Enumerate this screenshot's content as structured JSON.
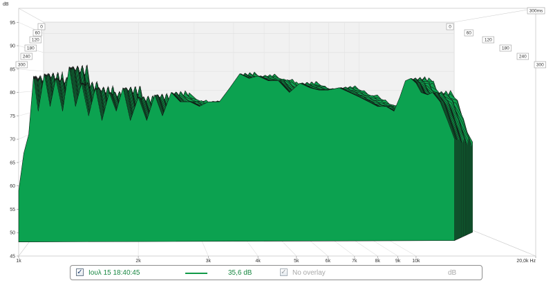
{
  "chart_data": {
    "type": "area",
    "subtype": "waterfall-3d",
    "ylabel": "dB",
    "ylim": [
      45,
      98
    ],
    "y_ticks": [
      "95",
      "90",
      "85",
      "80",
      "75",
      "70",
      "65",
      "60",
      "55",
      "50",
      "45"
    ],
    "xlim": [
      1000,
      20000
    ],
    "x_scale": "log",
    "x_ticks": [
      {
        "value": 1000,
        "label": "1k"
      },
      {
        "value": 2000,
        "label": "2k"
      },
      {
        "value": 3000,
        "label": "3k"
      },
      {
        "value": 4000,
        "label": "4k"
      },
      {
        "value": 5000,
        "label": "5k"
      },
      {
        "value": 6000,
        "label": "6k"
      },
      {
        "value": 7000,
        "label": "7k"
      },
      {
        "value": 8000,
        "label": "8k"
      },
      {
        "value": 9000,
        "label": "9k"
      },
      {
        "value": 10000,
        "label": "10k"
      },
      {
        "value": 20000,
        "label": "20,0k Hz"
      }
    ],
    "time_ticks_left": [
      "0",
      "60",
      "120",
      "180",
      "240",
      "300"
    ],
    "time_ticks_right": [
      "0",
      "60",
      "120",
      "180",
      "240",
      "300"
    ],
    "time_corner_label": "300ms",
    "time_range_ms": [
      0,
      300
    ],
    "slice_count": 28,
    "fill_color": "#0ca250",
    "edge_color": "#111111",
    "grid": true,
    "front_slice": {
      "x": [
        1000,
        1030,
        1060,
        1090,
        1120,
        1160,
        1200,
        1240,
        1290,
        1340,
        1390,
        1440,
        1500,
        1560,
        1620,
        1690,
        1760,
        1830,
        1910,
        2000,
        2100,
        2200,
        2300,
        2420,
        2550,
        2700,
        2850,
        3000,
        3200,
        3400,
        3600,
        3800,
        4000,
        4250,
        4500,
        4800,
        5100,
        5400,
        5700,
        6000,
        6400,
        6800,
        7200,
        7600,
        8000,
        8400,
        8800,
        9100,
        9400,
        9700,
        10000,
        10300,
        10700,
        11000,
        11500,
        12000,
        12500
      ],
      "y": [
        59,
        67,
        71,
        83.5,
        76,
        84,
        77,
        83,
        76,
        85.5,
        77,
        82,
        75,
        81,
        74,
        80,
        76,
        81,
        74,
        79,
        74,
        79.5,
        75,
        80,
        78,
        78,
        77,
        78,
        78,
        81,
        84,
        83,
        83.5,
        82.5,
        82.5,
        80,
        82,
        81,
        80.5,
        80.5,
        81,
        80,
        79,
        78,
        77,
        77,
        76,
        79,
        82.5,
        83,
        82,
        80,
        79.5,
        80,
        78,
        74,
        70
      ]
    }
  },
  "legend": {
    "measurement_checked": true,
    "measurement_label": "Ιουλ 15 18:40:45",
    "measurement_value": "35,6 dB",
    "series_color": "#109a47",
    "overlay_checked": true,
    "overlay_label": "No overlay",
    "unit_label": "dB"
  }
}
